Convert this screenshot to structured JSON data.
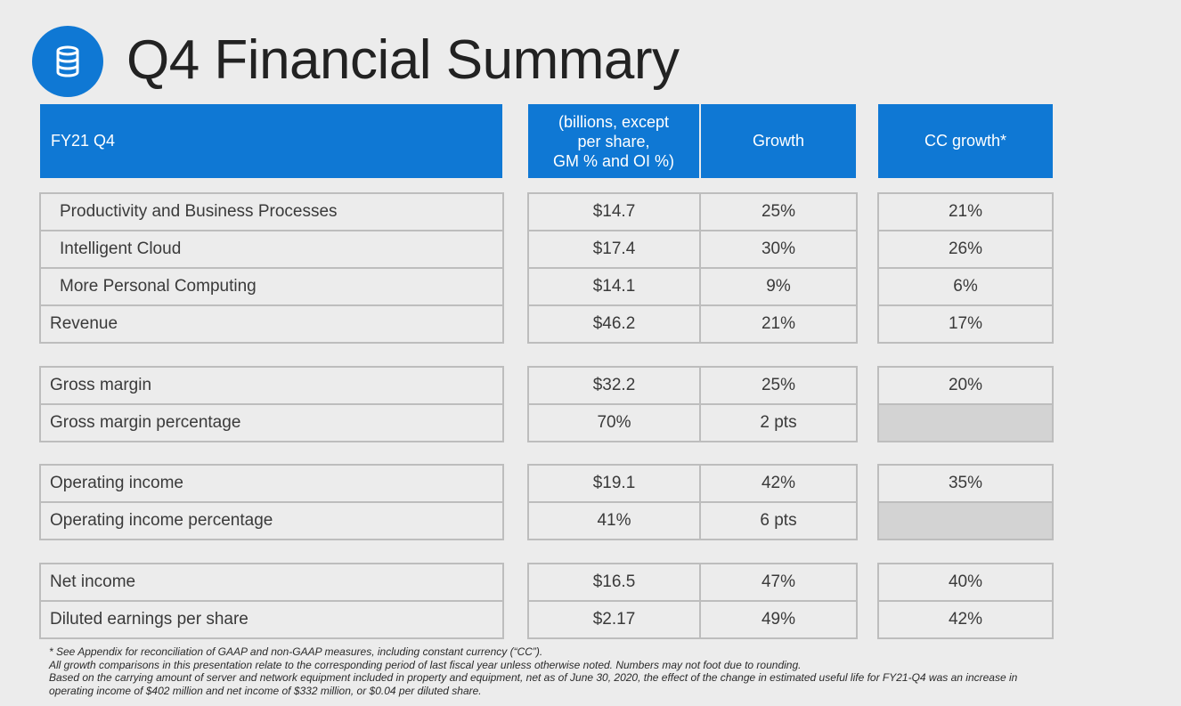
{
  "title": "Q4 Financial Summary",
  "icon": "database-icon",
  "accent_color": "#0f78d4",
  "header": {
    "label": "FY21 Q4",
    "col1_line1": "(billions, except",
    "col1_line2": "per share,",
    "col1_line3": "GM % and OI %)",
    "col2": "Growth",
    "col3": "CC growth*"
  },
  "rows": [
    {
      "label": "Productivity and Business Processes",
      "value": "$14.7",
      "growth": "25%",
      "cc": "21%"
    },
    {
      "label": "Intelligent Cloud",
      "value": "$17.4",
      "growth": "30%",
      "cc": "26%"
    },
    {
      "label": "More Personal Computing",
      "value": "$14.1",
      "growth": "9%",
      "cc": "6%"
    },
    {
      "label": "Revenue",
      "value": "$46.2",
      "growth": "21%",
      "cc": "17%"
    },
    {
      "label": "Gross margin",
      "value": "$32.2",
      "growth": "25%",
      "cc": "20%"
    },
    {
      "label": "Gross margin percentage",
      "value": "70%",
      "growth": "2 pts",
      "cc": ""
    },
    {
      "label": "Operating income",
      "value": "$19.1",
      "growth": "42%",
      "cc": "35%"
    },
    {
      "label": "Operating income percentage",
      "value": "41%",
      "growth": "6 pts",
      "cc": ""
    },
    {
      "label": "Net income",
      "value": "$16.5",
      "growth": "47%",
      "cc": "40%"
    },
    {
      "label": "Diluted earnings per share",
      "value": "$2.17",
      "growth": "49%",
      "cc": "42%"
    }
  ],
  "footnotes": [
    "* See Appendix for reconciliation of GAAP and non-GAAP measures, including constant currency (“CC”).",
    "All growth comparisons in this presentation relate to the corresponding period of last fiscal year unless otherwise noted. Numbers may not foot due to rounding.",
    "Based on the carrying amount of server and network equipment included in property and equipment, net as of June 30, 2020, the effect of the change in estimated useful life for FY21-Q4 was an increase in",
    "operating income of $402 million and net income of $332 million, or $0.04 per diluted share."
  ]
}
